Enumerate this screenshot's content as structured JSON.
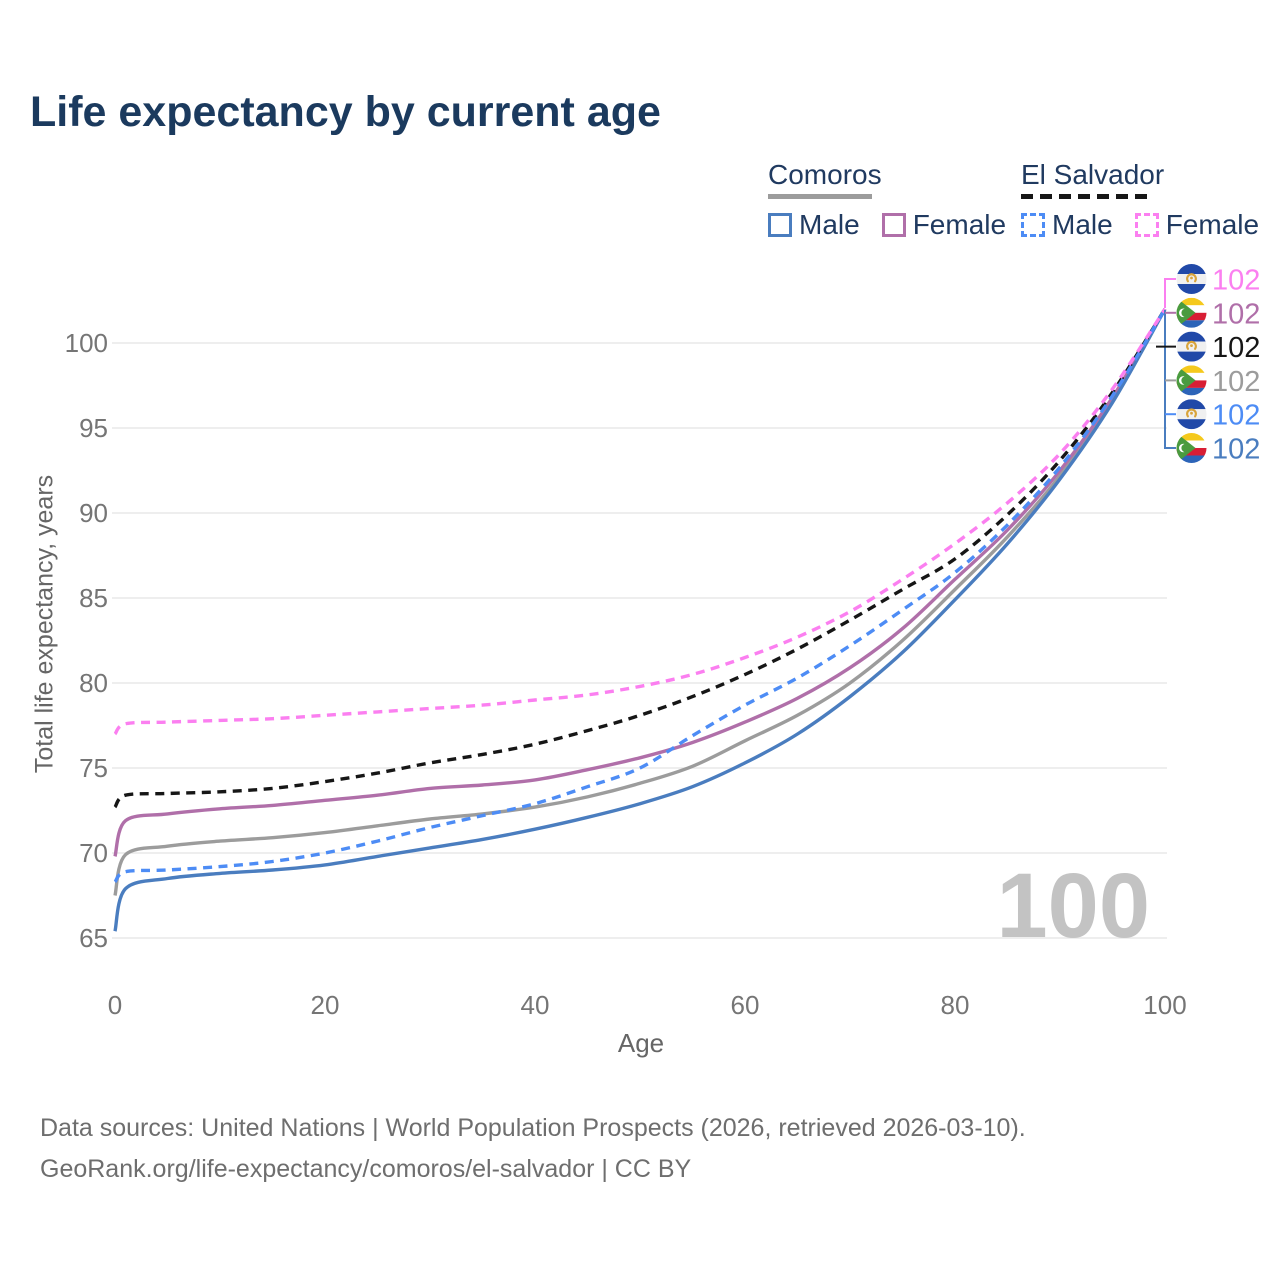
{
  "header": {
    "title": "Life expectancy by current age"
  },
  "legend": {
    "groups": [
      {
        "name": "Comoros",
        "underline_style": "solid",
        "underline_color": "#9c9c9c",
        "items": [
          {
            "label": "Male",
            "color": "#4a7dbf",
            "dashed": false
          },
          {
            "label": "Female",
            "color": "#b06fa9",
            "dashed": false
          }
        ]
      },
      {
        "name": "El Salvador",
        "underline_style": "dashed",
        "underline_color": "#161616",
        "items": [
          {
            "label": "Male",
            "color": "#4d8cf5",
            "dashed": true
          },
          {
            "label": "Female",
            "color": "#fb7ff0",
            "dashed": true
          }
        ]
      }
    ]
  },
  "watermark": "100",
  "chart_data": {
    "type": "line",
    "title": "Life expectancy by current age",
    "xlabel": "Age",
    "ylabel": "Total life expectancy, years",
    "xlim": [
      0,
      100
    ],
    "ylim": [
      65,
      104
    ],
    "xticks": [
      0,
      20,
      40,
      60,
      80,
      100
    ],
    "yticks": [
      65,
      70,
      75,
      80,
      85,
      90,
      95,
      100
    ],
    "grid": "horizontal",
    "legend_position": "top-right",
    "ages": [
      0,
      1,
      5,
      10,
      15,
      20,
      25,
      30,
      35,
      40,
      45,
      50,
      55,
      60,
      65,
      70,
      75,
      80,
      85,
      90,
      95,
      100
    ],
    "series": [
      {
        "name": "Comoros total",
        "country": "comoros",
        "sex": "total",
        "color": "#9c9c9c",
        "dash": "solid",
        "end_label": "102",
        "label_row": 3,
        "values": [
          67.5,
          69.9,
          70.4,
          70.7,
          70.9,
          71.2,
          71.6,
          72.0,
          72.3,
          72.7,
          73.3,
          74.1,
          75.1,
          76.6,
          78.1,
          80.0,
          82.5,
          85.5,
          88.6,
          92.2,
          96.7,
          102
        ]
      },
      {
        "name": "Comoros Female",
        "country": "comoros",
        "sex": "female",
        "color": "#b06fa9",
        "dash": "solid",
        "end_label": "102",
        "label_row": 1,
        "values": [
          69.8,
          71.9,
          72.3,
          72.6,
          72.8,
          73.1,
          73.4,
          73.8,
          74.0,
          74.3,
          74.9,
          75.6,
          76.5,
          77.7,
          79.1,
          80.9,
          83.2,
          86.1,
          89.0,
          92.5,
          96.8,
          102
        ]
      },
      {
        "name": "Comoros Male",
        "country": "comoros",
        "sex": "male",
        "color": "#4a7dbf",
        "dash": "solid",
        "end_label": "102",
        "label_row": 5,
        "values": [
          65.4,
          67.9,
          68.5,
          68.8,
          69.0,
          69.3,
          69.8,
          70.3,
          70.8,
          71.4,
          72.1,
          72.9,
          73.9,
          75.3,
          77.0,
          79.2,
          81.8,
          84.9,
          88.2,
          92.0,
          96.5,
          102
        ]
      },
      {
        "name": "El Salvador total",
        "country": "el-salvador",
        "sex": "total",
        "color": "#161616",
        "dash": "dashed",
        "end_label": "102",
        "label_row": 2,
        "values": [
          72.7,
          73.4,
          73.5,
          73.6,
          73.8,
          74.2,
          74.7,
          75.3,
          75.8,
          76.4,
          77.2,
          78.1,
          79.2,
          80.5,
          82.0,
          83.7,
          85.5,
          87.3,
          89.9,
          93.1,
          97.1,
          102
        ]
      },
      {
        "name": "El Salvador Male",
        "country": "el-salvador",
        "sex": "male",
        "color": "#4d8cf5",
        "dash": "dashed",
        "end_label": "102",
        "label_row": 4,
        "values": [
          68.3,
          68.9,
          69.0,
          69.2,
          69.5,
          70.0,
          70.7,
          71.5,
          72.2,
          72.9,
          73.9,
          75.0,
          76.9,
          78.7,
          80.3,
          82.2,
          84.3,
          86.5,
          89.3,
          92.7,
          96.9,
          102
        ]
      },
      {
        "name": "El Salvador Female",
        "country": "el-salvador",
        "sex": "female",
        "color": "#fb7ff0",
        "dash": "dashed",
        "end_label": "102",
        "label_row": 0,
        "values": [
          77.0,
          77.6,
          77.7,
          77.8,
          77.9,
          78.1,
          78.3,
          78.5,
          78.7,
          79.0,
          79.3,
          79.8,
          80.5,
          81.5,
          82.7,
          84.2,
          86.1,
          88.2,
          90.6,
          93.5,
          97.3,
          102
        ]
      }
    ]
  },
  "footer": {
    "line1": "Data sources: United Nations | World Population Prospects (2026, retrieved 2026-03-10).",
    "line2": "GeoRank.org/life-expectancy/comoros/el-salvador | CC BY"
  }
}
